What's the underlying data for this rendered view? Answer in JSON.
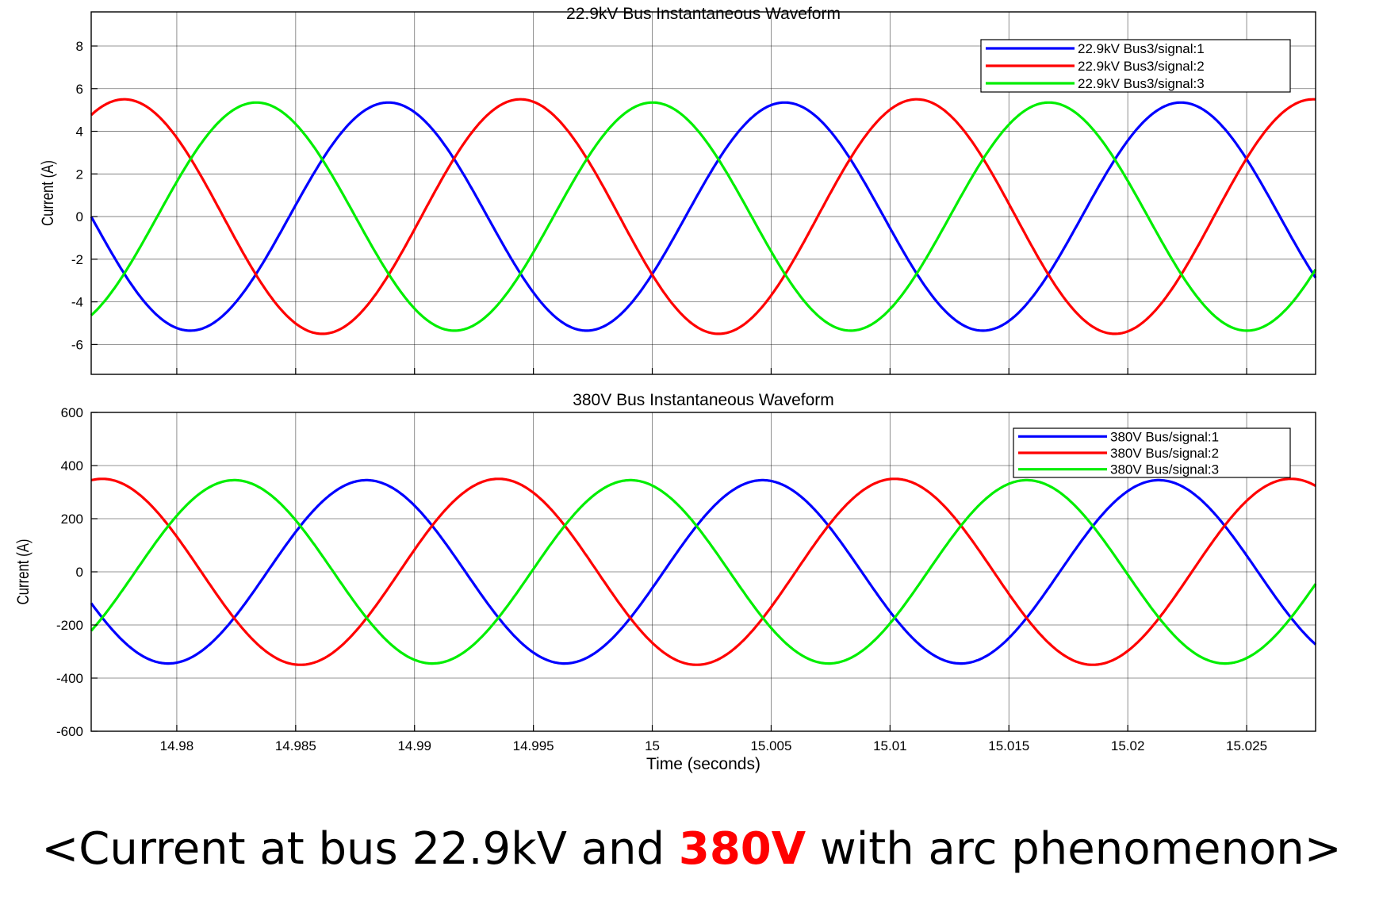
{
  "chart_data": [
    {
      "type": "line",
      "title": "22.9kV Bus Instantaneous Waveform",
      "xlabel": "",
      "ylabel": "Current (A)",
      "xlim": [
        14.9764,
        15.0279
      ],
      "ylim": [
        -7.4,
        9.6
      ],
      "yticks": [
        8,
        6,
        4,
        2,
        0,
        -2,
        -4,
        -6
      ],
      "ytick_labels": [
        "8",
        "6",
        "4",
        "2",
        "0",
        "-2",
        "-4",
        "-6"
      ],
      "xticks": [
        14.98,
        14.985,
        14.99,
        14.995,
        15.0,
        15.005,
        15.01,
        15.015,
        15.02,
        15.025
      ],
      "xtick_labels": [],
      "grid": true,
      "legend_position": "top-right",
      "series": [
        {
          "name": "22.9kV Bus3/signal:1",
          "color": "#0000ff",
          "amplitude": 5.35,
          "phase_deg": 180
        },
        {
          "name": "22.9kV Bus3/signal:2",
          "color": "#ff0000",
          "amplitude": 5.5,
          "phase_deg": 60
        },
        {
          "name": "22.9kV Bus3/signal:3",
          "color": "#00ee00",
          "amplitude": 5.35,
          "phase_deg": -60
        }
      ],
      "waveform": {
        "frequency_hz": 60,
        "reference_time": 14.9764
      }
    },
    {
      "type": "line",
      "title": "380V Bus Instantaneous Waveform",
      "xlabel": "Time (seconds)",
      "ylabel": "Current (A)",
      "xlim": [
        14.9764,
        15.0279
      ],
      "ylim": [
        -600,
        600
      ],
      "yticks": [
        600,
        400,
        200,
        0,
        -200,
        -400,
        -600
      ],
      "ytick_labels": [
        "600",
        "400",
        "200",
        "0",
        "-200",
        "-400",
        "-600"
      ],
      "xticks": [
        14.98,
        14.985,
        14.99,
        14.995,
        15.0,
        15.005,
        15.01,
        15.015,
        15.02,
        15.025
      ],
      "xtick_labels": [
        "14.98",
        "14.985",
        "14.99",
        "14.995",
        "15",
        "15.005",
        "15.01",
        "15.015",
        "15.02",
        "15.025"
      ],
      "grid": true,
      "legend_position": "top-right",
      "series": [
        {
          "name": "380V Bus/signal:1",
          "color": "#0000ff",
          "amplitude": 345,
          "phase_deg": 200
        },
        {
          "name": "380V Bus/signal:2",
          "color": "#ff0000",
          "amplitude": 350,
          "phase_deg": 80
        },
        {
          "name": "380V Bus/signal:3",
          "color": "#00ee00",
          "amplitude": 345,
          "phase_deg": -40
        }
      ],
      "waveform": {
        "frequency_hz": 60,
        "reference_time": 14.9764
      }
    }
  ],
  "caption": {
    "prefix": "<Current at bus 22.9kV and ",
    "highlight": "380V",
    "suffix": " with arc phenomenon>"
  }
}
